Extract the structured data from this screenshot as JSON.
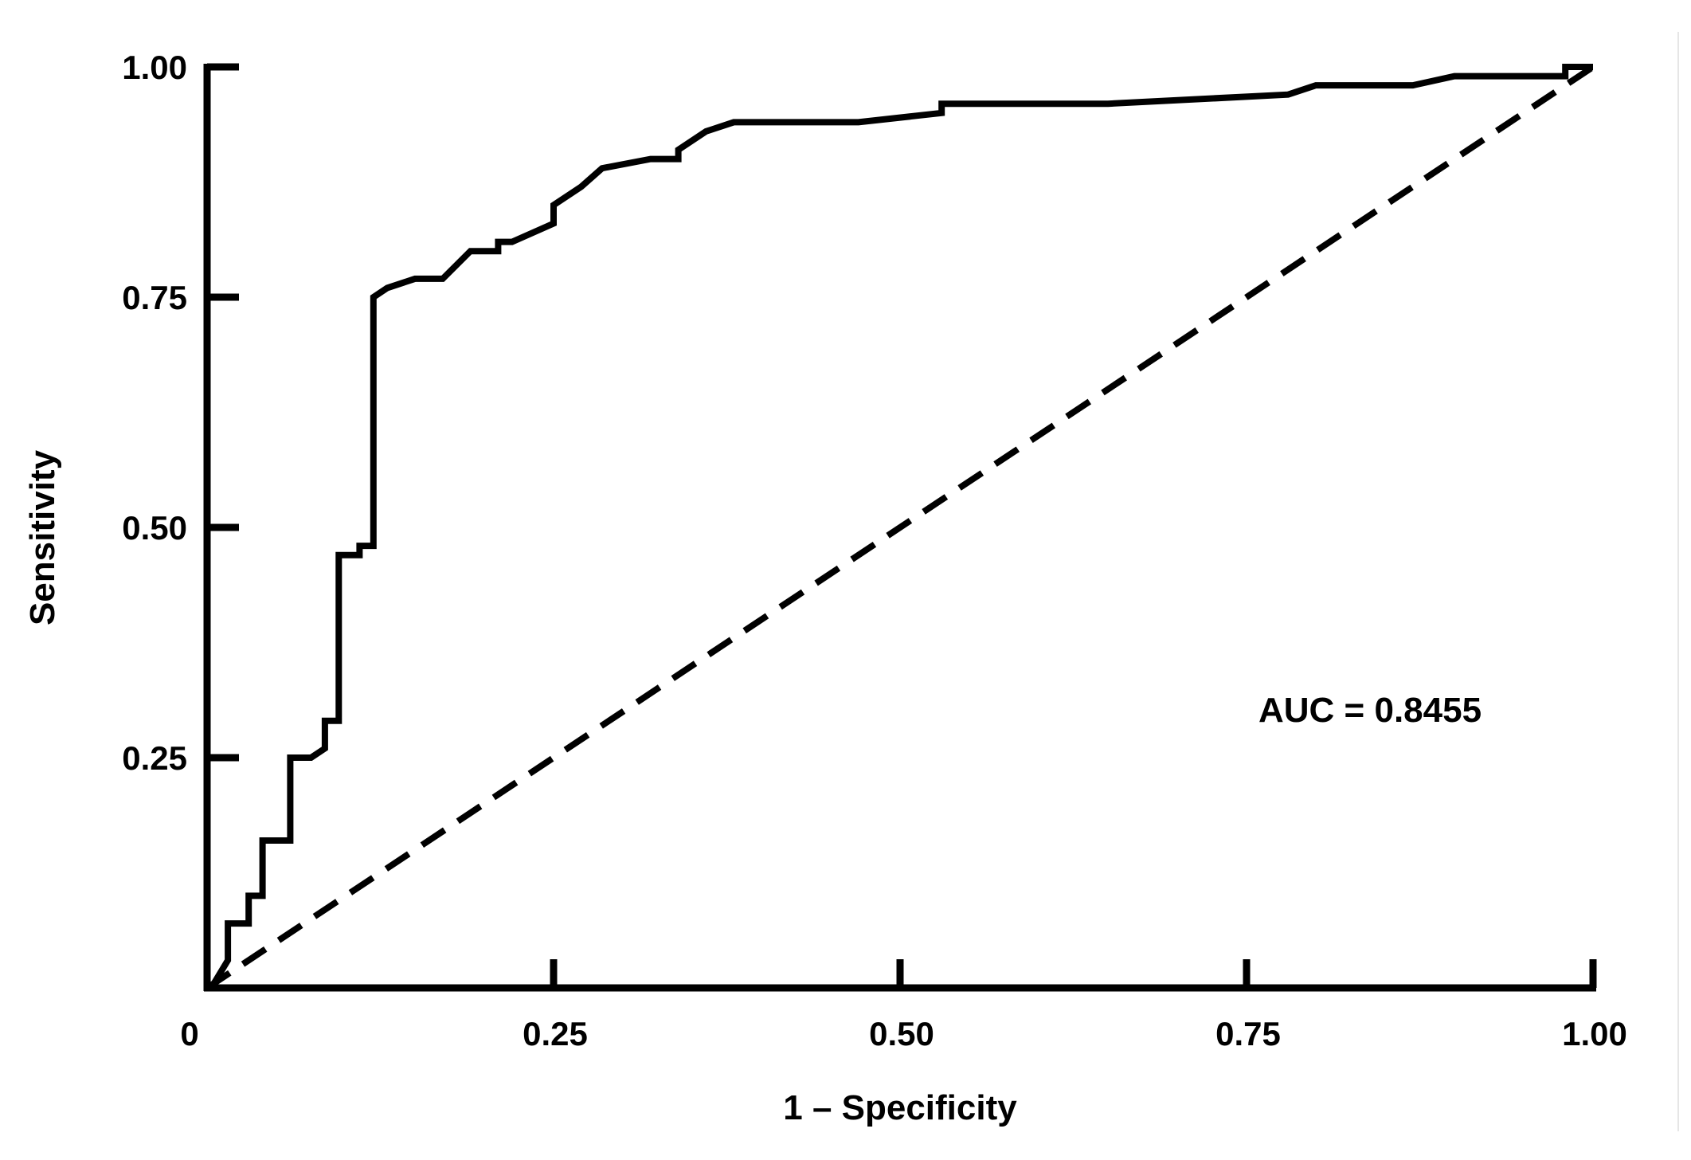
{
  "chart_data": {
    "type": "line",
    "title": "",
    "xlabel": "1 – Specificity",
    "ylabel": "Sensitivity",
    "xlim": [
      0,
      1
    ],
    "ylim": [
      0,
      1
    ],
    "x_ticks": [
      "0",
      "0.25",
      "0.50",
      "0.75",
      "1.00"
    ],
    "x_tick_values": [
      0,
      0.25,
      0.5,
      0.75,
      1.0
    ],
    "y_ticks": [
      "0.25",
      "0.50",
      "0.75",
      "1.00"
    ],
    "y_tick_values": [
      0.25,
      0.5,
      0.75,
      1.0
    ],
    "grid": false,
    "annotation": "AUC = 0.8455",
    "series": [
      {
        "style": "solid",
        "color": "#000000",
        "x": [
          0.005,
          0.015,
          0.015,
          0.03,
          0.03,
          0.04,
          0.04,
          0.06,
          0.06,
          0.075,
          0.085,
          0.085,
          0.095,
          0.095,
          0.11,
          0.11,
          0.11,
          0.12,
          0.12,
          0.13,
          0.15,
          0.17,
          0.19,
          0.21,
          0.21,
          0.22,
          0.22,
          0.25,
          0.25,
          0.27,
          0.285,
          0.32,
          0.34,
          0.34,
          0.36,
          0.38,
          0.47,
          0.53,
          0.53,
          0.55,
          0.65,
          0.78,
          0.8,
          0.87,
          0.9,
          0.98,
          0.98,
          1.0
        ],
        "y": [
          0.005,
          0.03,
          0.07,
          0.07,
          0.1,
          0.1,
          0.16,
          0.16,
          0.25,
          0.25,
          0.26,
          0.29,
          0.29,
          0.47,
          0.47,
          0.48,
          0.48,
          0.48,
          0.75,
          0.76,
          0.77,
          0.77,
          0.8,
          0.8,
          0.81,
          0.81,
          0.81,
          0.83,
          0.85,
          0.87,
          0.89,
          0.9,
          0.9,
          0.91,
          0.93,
          0.94,
          0.94,
          0.95,
          0.96,
          0.96,
          0.96,
          0.97,
          0.98,
          0.98,
          0.99,
          0.99,
          1.0,
          1.0
        ]
      },
      {
        "style": "dashed",
        "color": "#000000",
        "x": [
          0.0,
          1.0
        ],
        "y": [
          0.0,
          1.0
        ]
      }
    ]
  }
}
